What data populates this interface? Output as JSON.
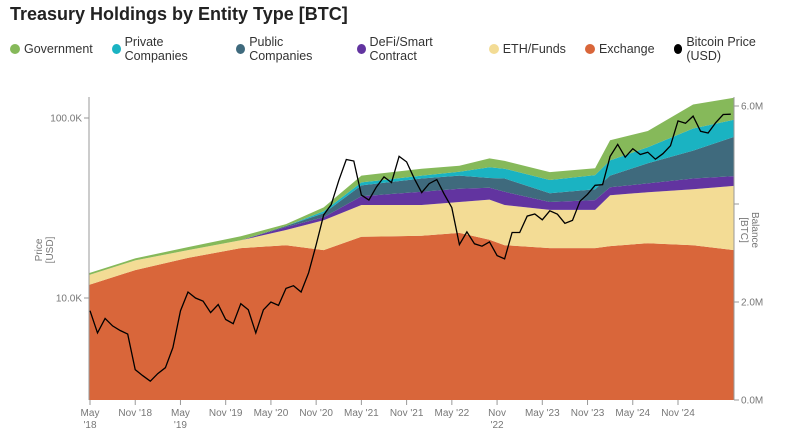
{
  "chart_data": {
    "type": "area",
    "title": "Treasury Holdings by Entity Type [BTC]",
    "y_left_label": "Price [USD]",
    "y_right_label": "Balance [BTC]",
    "y_left_scale": "log",
    "y_left_ticks": [
      {
        "v": 10000,
        "label": "10.0K"
      },
      {
        "v": 100000,
        "label": "100.0K"
      }
    ],
    "y_right_ticks": [
      {
        "v": 0,
        "label": "0.0M"
      },
      {
        "v": 2,
        "label": "2.0M"
      },
      {
        "v": 4,
        "label": ""
      },
      {
        "v": 6,
        "label": "6.0M"
      }
    ],
    "y_right_range_millions": [
      0,
      6.2
    ],
    "x_ticks": [
      {
        "d": "2018-05",
        "label": [
          "May",
          "'18"
        ]
      },
      {
        "d": "2018-11",
        "label": [
          "Nov '18"
        ]
      },
      {
        "d": "2019-05",
        "label": [
          "May",
          "'19"
        ]
      },
      {
        "d": "2019-11",
        "label": [
          "Nov '19"
        ]
      },
      {
        "d": "2020-05",
        "label": [
          "May '20"
        ]
      },
      {
        "d": "2020-11",
        "label": [
          "Nov '20"
        ]
      },
      {
        "d": "2021-05",
        "label": [
          "May '21"
        ]
      },
      {
        "d": "2021-11",
        "label": [
          "Nov '21"
        ]
      },
      {
        "d": "2022-05",
        "label": [
          "May '22"
        ]
      },
      {
        "d": "2022-11",
        "label": [
          "Nov",
          "'22"
        ]
      },
      {
        "d": "2023-05",
        "label": [
          "May '23"
        ]
      },
      {
        "d": "2023-11",
        "label": [
          "Nov '23"
        ]
      },
      {
        "d": "2024-05",
        "label": [
          "May '24"
        ]
      },
      {
        "d": "2024-11",
        "label": [
          "Nov '24"
        ]
      }
    ],
    "legend_position": "top-left",
    "stack_dates": [
      "2018-05",
      "2018-11",
      "2019-06",
      "2020-01",
      "2020-07",
      "2020-12",
      "2021-05",
      "2022-01",
      "2022-06",
      "2022-10",
      "2022-12",
      "2023-06",
      "2023-12",
      "2024-02",
      "2024-07",
      "2025-01",
      "2025-06"
    ],
    "series": [
      {
        "name": "Exchange",
        "color": "#d9663a",
        "values": [
          2.35,
          2.65,
          2.9,
          3.1,
          3.16,
          3.06,
          3.33,
          3.35,
          3.41,
          3.27,
          3.16,
          3.1,
          3.1,
          3.14,
          3.2,
          3.16,
          3.06
        ]
      },
      {
        "name": "ETH/Funds",
        "color": "#f3dc95",
        "values": [
          0.2,
          0.2,
          0.16,
          0.16,
          0.31,
          0.61,
          0.65,
          0.63,
          0.63,
          0.82,
          0.82,
          0.78,
          0.78,
          1.04,
          1.04,
          1.14,
          1.31
        ]
      },
      {
        "name": "DeFi/Smart Contract",
        "color": "#6234a0",
        "values": [
          0,
          0,
          0,
          0,
          0.06,
          0.06,
          0.18,
          0.27,
          0.27,
          0.24,
          0.27,
          0.16,
          0.2,
          0.16,
          0.18,
          0.22,
          0.2
        ]
      },
      {
        "name": "Public Companies",
        "color": "#3f6a7d",
        "values": [
          0,
          0,
          0,
          0,
          0.02,
          0.08,
          0.22,
          0.27,
          0.27,
          0.2,
          0.27,
          0.18,
          0.22,
          0.24,
          0.41,
          0.57,
          0.8
        ]
      },
      {
        "name": "Private Companies",
        "color": "#1ab3c2",
        "values": [
          0,
          0,
          0,
          0,
          0,
          0.04,
          0.06,
          0.06,
          0.08,
          0.22,
          0.2,
          0.27,
          0.29,
          0.31,
          0.33,
          0.45,
          0.35
        ]
      },
      {
        "name": "Government",
        "color": "#86b95a",
        "values": [
          0.04,
          0.04,
          0.06,
          0.08,
          0.04,
          0.08,
          0.14,
          0.14,
          0.12,
          0.18,
          0.16,
          0.16,
          0.14,
          0.41,
          0.33,
          0.49,
          0.45
        ]
      }
    ],
    "price": {
      "name": "Bitcoin Price (USD)",
      "color": "#000000",
      "dates": [
        "2018-05",
        "2018-06",
        "2018-07",
        "2018-08",
        "2018-09",
        "2018-10",
        "2018-11",
        "2018-12",
        "2019-01",
        "2019-02",
        "2019-03",
        "2019-04",
        "2019-05",
        "2019-06",
        "2019-07",
        "2019-08",
        "2019-09",
        "2019-10",
        "2019-11",
        "2019-12",
        "2020-01",
        "2020-02",
        "2020-03",
        "2020-04",
        "2020-05",
        "2020-06",
        "2020-07",
        "2020-08",
        "2020-09",
        "2020-10",
        "2020-11",
        "2020-12",
        "2021-01",
        "2021-02",
        "2021-03",
        "2021-04",
        "2021-05",
        "2021-06",
        "2021-07",
        "2021-08",
        "2021-09",
        "2021-10",
        "2021-11",
        "2021-12",
        "2022-01",
        "2022-02",
        "2022-03",
        "2022-04",
        "2022-05",
        "2022-06",
        "2022-07",
        "2022-08",
        "2022-09",
        "2022-10",
        "2022-11",
        "2022-12",
        "2023-01",
        "2023-02",
        "2023-03",
        "2023-04",
        "2023-05",
        "2023-06",
        "2023-07",
        "2023-08",
        "2023-09",
        "2023-10",
        "2023-11",
        "2023-12",
        "2024-01",
        "2024-02",
        "2024-03",
        "2024-04",
        "2024-05",
        "2024-06",
        "2024-07",
        "2024-08",
        "2024-09",
        "2024-10",
        "2024-11",
        "2024-12",
        "2025-01",
        "2025-02",
        "2025-03",
        "2025-04",
        "2025-05",
        "2025-06"
      ],
      "values": [
        8500,
        6400,
        7700,
        7000,
        6600,
        6300,
        4000,
        3700,
        3450,
        3800,
        4100,
        5300,
        8500,
        10800,
        10000,
        9600,
        8300,
        9200,
        7600,
        7200,
        9300,
        8600,
        6400,
        8600,
        9500,
        9100,
        11300,
        11700,
        10800,
        13800,
        19700,
        29000,
        33000,
        45000,
        58800,
        57700,
        37300,
        35000,
        41500,
        47100,
        43800,
        61300,
        57000,
        46300,
        38500,
        43200,
        45500,
        37700,
        31800,
        19800,
        23300,
        20000,
        19400,
        20500,
        17200,
        16500,
        23100,
        23100,
        28500,
        29300,
        27200,
        30500,
        29200,
        26000,
        27000,
        34500,
        37700,
        42300,
        42600,
        61200,
        71300,
        60600,
        67500,
        62700,
        64600,
        59000,
        63300,
        70200,
        96400,
        93400,
        102400,
        84400,
        82500,
        94200,
        104600,
        105000
      ]
    }
  },
  "legend": [
    {
      "label": "Government",
      "color": "#86b95a"
    },
    {
      "label": "Private Companies",
      "color": "#1ab3c2"
    },
    {
      "label": "Public Companies",
      "color": "#3f6a7d"
    },
    {
      "label": "DeFi/Smart Contract",
      "color": "#6234a0"
    },
    {
      "label": "ETH/Funds",
      "color": "#f3dc95"
    },
    {
      "label": "Exchange",
      "color": "#d9663a"
    },
    {
      "label": "Bitcoin Price (USD)",
      "color": "#000000"
    }
  ]
}
